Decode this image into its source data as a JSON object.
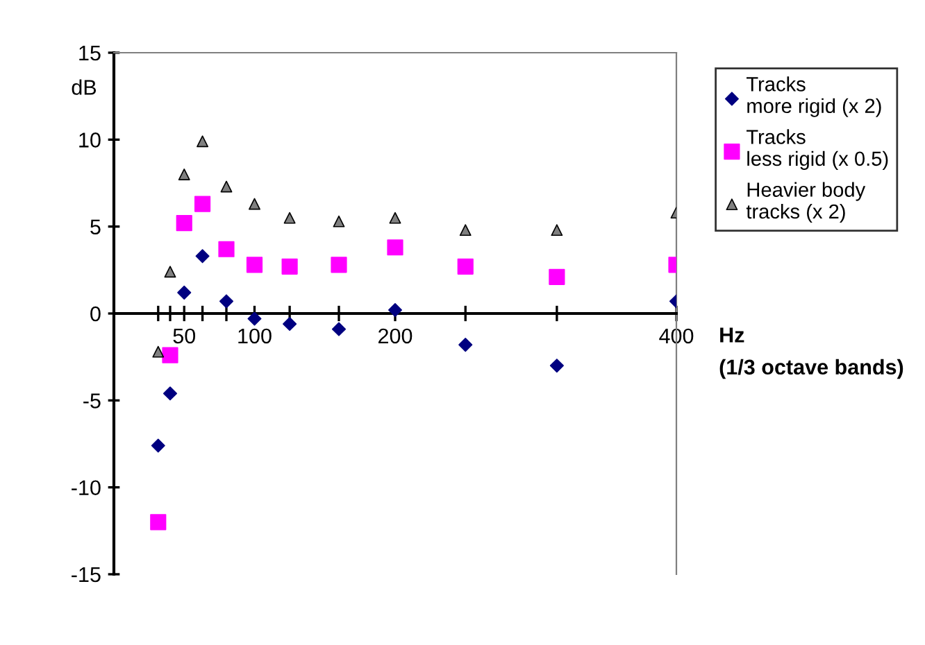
{
  "chart_data": {
    "type": "scatter",
    "ylabel": "dB",
    "xlabel": "Hz\n(1/3 octave bands)",
    "x": [
      31.5,
      40,
      50,
      63,
      80,
      100,
      125,
      160,
      200,
      250,
      315,
      400
    ],
    "xlim": [
      0,
      400
    ],
    "ylim": [
      -15,
      15
    ],
    "xticks": [
      {
        "value": 31.5,
        "label": null
      },
      {
        "value": 40,
        "label": null
      },
      50,
      {
        "value": 63,
        "label": null
      },
      {
        "value": 80,
        "label": null
      },
      100,
      {
        "value": 125,
        "label": null
      },
      {
        "value": 160,
        "label": null
      },
      200,
      {
        "value": 250,
        "label": null
      },
      {
        "value": 315,
        "label": null
      },
      400
    ],
    "yticks": [
      -15,
      -10,
      -5,
      0,
      5,
      10,
      15
    ],
    "grid": false,
    "legend": "right",
    "series": [
      {
        "name": "Tracks\nmore rigid (x 2)",
        "color": "#000080",
        "marker": "diamond",
        "values": [
          -7.6,
          -4.6,
          1.2,
          3.3,
          0.7,
          -0.3,
          -0.6,
          -0.9,
          0.2,
          -1.8,
          -3.0,
          0.7
        ]
      },
      {
        "name": "Tracks\nless rigid (x 0.5)",
        "color": "#ff00ff",
        "marker": "square",
        "values": [
          -12.0,
          -2.4,
          5.2,
          6.3,
          3.7,
          2.8,
          2.7,
          2.8,
          3.8,
          2.7,
          2.1,
          2.8
        ]
      },
      {
        "name": "Heavier body\ntracks (x 2)",
        "color": "#808080",
        "marker": "triangle",
        "values": [
          -2.2,
          2.4,
          8.0,
          9.9,
          7.3,
          6.3,
          5.5,
          5.3,
          5.5,
          4.8,
          4.8,
          5.8
        ]
      }
    ]
  }
}
